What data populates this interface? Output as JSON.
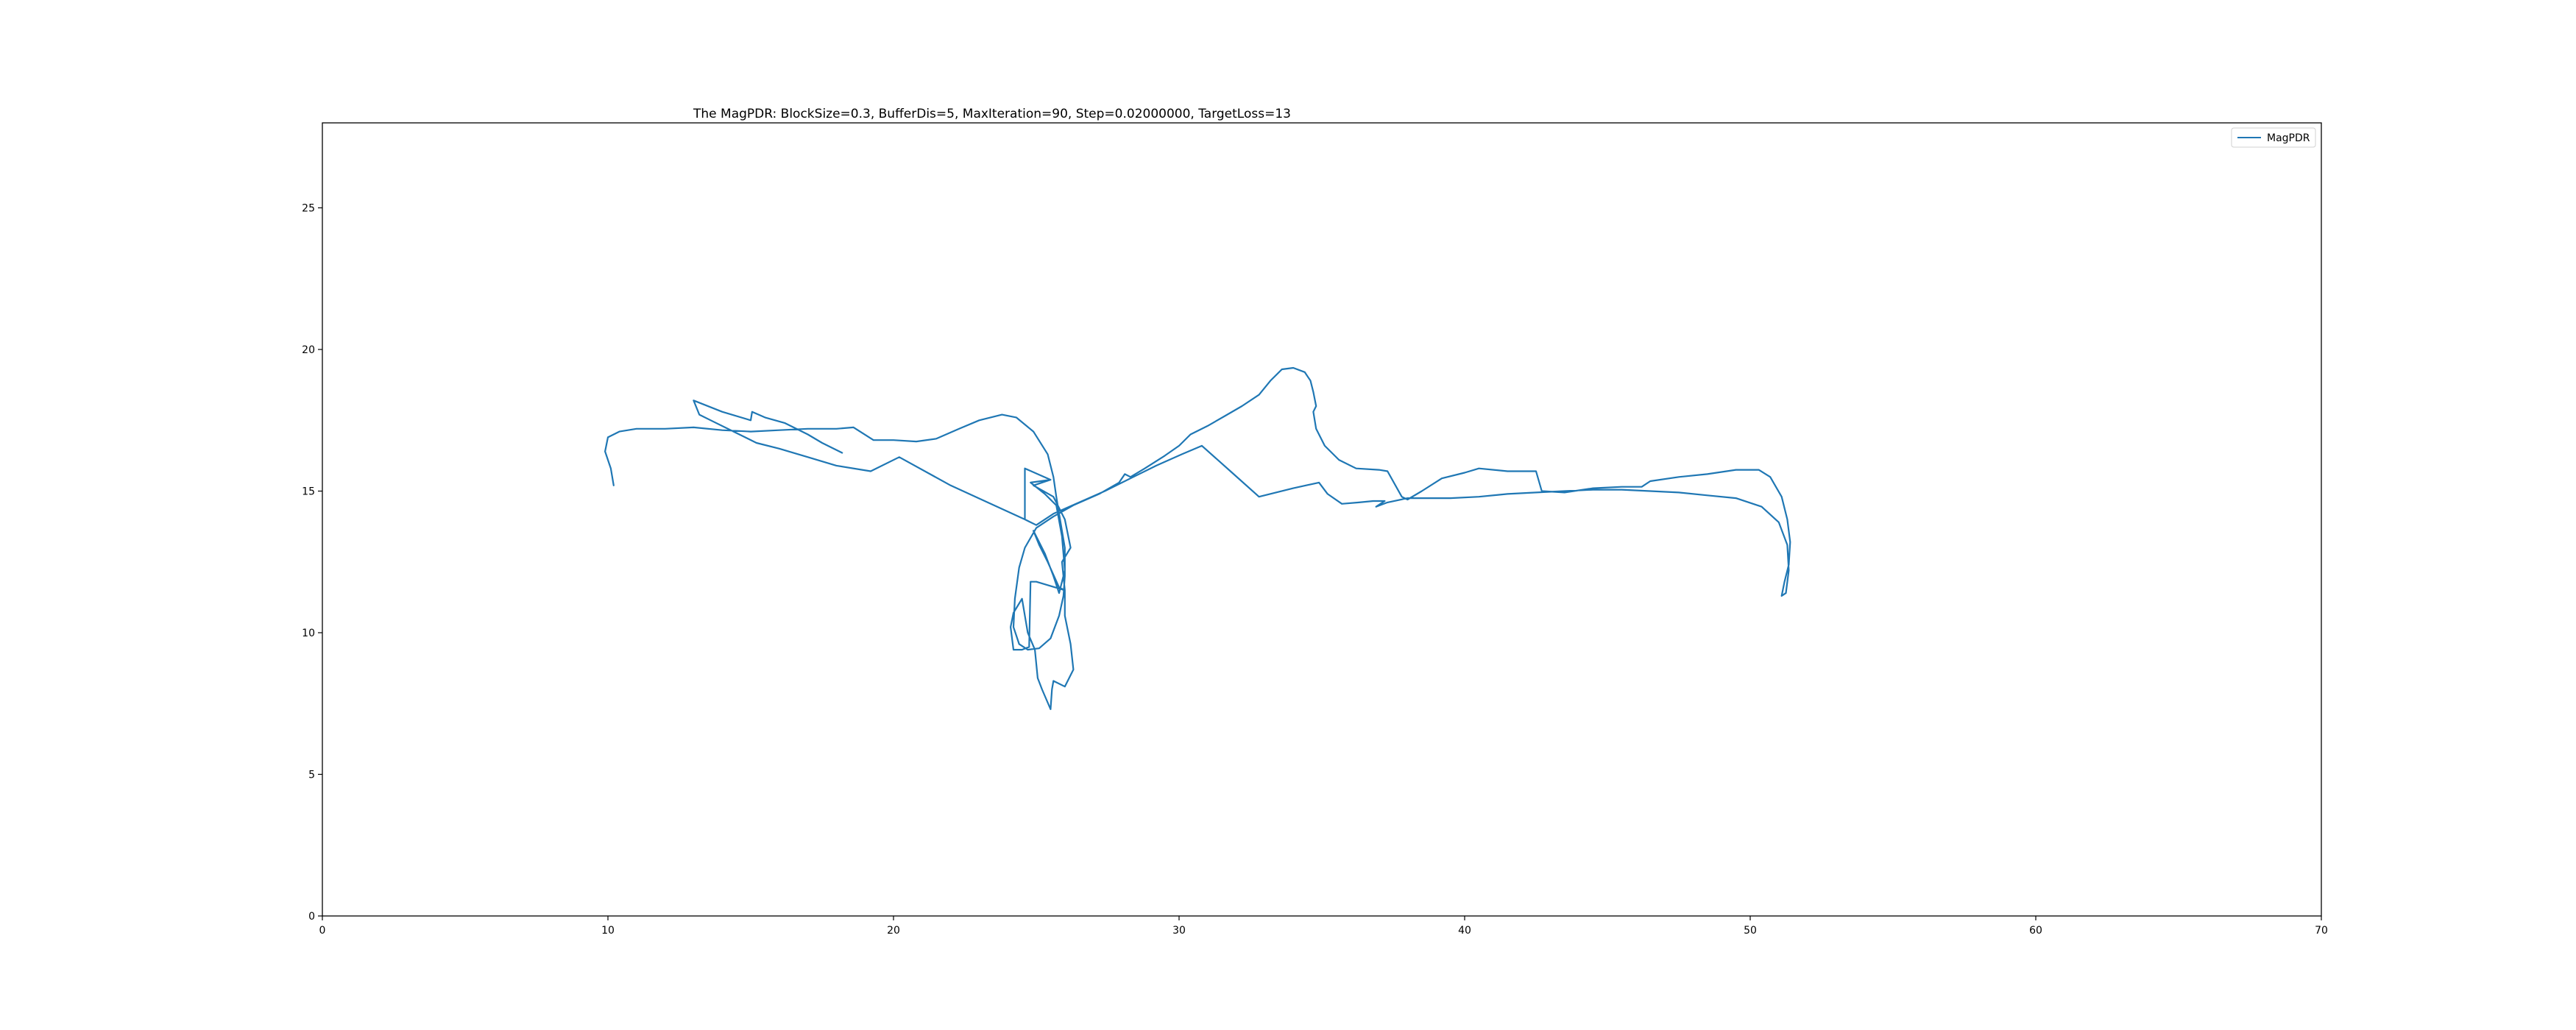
{
  "chart_data": {
    "type": "line",
    "title": "The MagPDR: BlockSize=0.3, BufferDis=5, MaxIteration=90, Step=0.02000000, TargetLoss=13",
    "xlabel": "",
    "ylabel": "",
    "xlim": [
      0,
      70
    ],
    "ylim": [
      0,
      28
    ],
    "x_ticks": [
      0,
      10,
      20,
      30,
      40,
      50,
      60,
      70
    ],
    "y_ticks": [
      0,
      5,
      10,
      15,
      20,
      25
    ],
    "grid": false,
    "legend": {
      "position": "top-right",
      "entries": [
        "MagPDR"
      ]
    },
    "series": [
      {
        "name": "MagPDR",
        "color": "#1f77b4",
        "points": [
          [
            10.2,
            15.2
          ],
          [
            10.1,
            15.8
          ],
          [
            9.9,
            16.4
          ],
          [
            10.0,
            16.9
          ],
          [
            10.4,
            17.1
          ],
          [
            11.0,
            17.2
          ],
          [
            12.0,
            17.2
          ],
          [
            13.0,
            17.25
          ],
          [
            14.0,
            17.15
          ],
          [
            15.0,
            17.1
          ],
          [
            16.0,
            17.15
          ],
          [
            17.0,
            17.2
          ],
          [
            18.0,
            17.2
          ],
          [
            18.6,
            17.25
          ],
          [
            19.3,
            16.8
          ],
          [
            20.0,
            16.8
          ],
          [
            20.8,
            16.75
          ],
          [
            21.5,
            16.85
          ],
          [
            22.3,
            17.2
          ],
          [
            23.0,
            17.5
          ],
          [
            23.8,
            17.7
          ],
          [
            24.3,
            17.6
          ],
          [
            24.9,
            17.1
          ],
          [
            25.4,
            16.3
          ],
          [
            25.6,
            15.5
          ],
          [
            25.7,
            14.8
          ],
          [
            25.8,
            14.2
          ],
          [
            26.0,
            13.0
          ],
          [
            26.0,
            12.0
          ],
          [
            25.95,
            11.3
          ],
          [
            25.8,
            10.6
          ],
          [
            25.5,
            9.8
          ],
          [
            25.1,
            9.45
          ],
          [
            24.7,
            9.4
          ],
          [
            24.4,
            9.6
          ],
          [
            24.2,
            10.2
          ],
          [
            24.25,
            11.2
          ],
          [
            24.4,
            12.3
          ],
          [
            24.6,
            13.0
          ],
          [
            25.0,
            13.7
          ],
          [
            25.6,
            14.1
          ],
          [
            26.3,
            14.5
          ],
          [
            27.2,
            14.9
          ],
          [
            27.9,
            15.3
          ],
          [
            28.1,
            15.6
          ],
          [
            28.3,
            15.5
          ],
          [
            28.8,
            15.8
          ],
          [
            29.5,
            16.25
          ],
          [
            30.0,
            16.6
          ],
          [
            30.4,
            17.0
          ],
          [
            31.0,
            17.3
          ],
          [
            31.6,
            17.65
          ],
          [
            32.2,
            18.0
          ],
          [
            32.8,
            18.4
          ],
          [
            33.2,
            18.9
          ],
          [
            33.6,
            19.3
          ],
          [
            34.0,
            19.35
          ],
          [
            34.4,
            19.2
          ],
          [
            34.6,
            18.9
          ],
          [
            34.7,
            18.5
          ],
          [
            34.8,
            18.0
          ],
          [
            34.7,
            17.8
          ],
          [
            34.8,
            17.2
          ],
          [
            35.1,
            16.6
          ],
          [
            35.6,
            16.1
          ],
          [
            36.2,
            15.8
          ],
          [
            37.0,
            15.75
          ],
          [
            37.3,
            15.7
          ],
          [
            37.8,
            14.8
          ],
          [
            38.0,
            14.7
          ],
          [
            38.5,
            15.0
          ],
          [
            39.2,
            15.45
          ],
          [
            40.0,
            15.65
          ],
          [
            40.5,
            15.8
          ],
          [
            41.5,
            15.7
          ],
          [
            42.5,
            15.7
          ],
          [
            42.7,
            15.0
          ],
          [
            43.5,
            14.95
          ],
          [
            44.5,
            15.1
          ],
          [
            45.5,
            15.15
          ],
          [
            46.2,
            15.15
          ],
          [
            46.5,
            15.35
          ],
          [
            47.5,
            15.5
          ],
          [
            48.5,
            15.6
          ],
          [
            49.5,
            15.75
          ],
          [
            50.3,
            15.75
          ],
          [
            50.7,
            15.5
          ],
          [
            51.1,
            14.8
          ],
          [
            51.3,
            14.0
          ],
          [
            51.4,
            13.2
          ],
          [
            51.35,
            12.4
          ],
          [
            51.2,
            11.8
          ],
          [
            51.1,
            11.3
          ],
          [
            51.25,
            11.4
          ],
          [
            51.35,
            12.2
          ],
          [
            51.3,
            13.1
          ],
          [
            51.0,
            13.9
          ],
          [
            50.4,
            14.45
          ],
          [
            49.5,
            14.75
          ],
          [
            48.5,
            14.85
          ],
          [
            47.5,
            14.95
          ],
          [
            46.5,
            15.0
          ],
          [
            45.5,
            15.05
          ],
          [
            44.5,
            15.05
          ],
          [
            43.5,
            15.0
          ],
          [
            42.5,
            14.95
          ],
          [
            41.5,
            14.9
          ],
          [
            40.5,
            14.8
          ],
          [
            39.5,
            14.75
          ],
          [
            38.7,
            14.75
          ],
          [
            38.0,
            14.75
          ],
          [
            37.3,
            14.6
          ],
          [
            36.9,
            14.45
          ],
          [
            37.2,
            14.65
          ],
          [
            36.8,
            14.65
          ],
          [
            36.3,
            14.6
          ],
          [
            35.7,
            14.55
          ],
          [
            35.2,
            14.9
          ],
          [
            34.9,
            15.3
          ],
          [
            34.0,
            15.1
          ],
          [
            32.8,
            14.8
          ],
          [
            31.8,
            15.7
          ],
          [
            30.8,
            16.6
          ],
          [
            30.1,
            16.3
          ],
          [
            29.2,
            15.9
          ],
          [
            28.3,
            15.45
          ],
          [
            27.4,
            15.0
          ],
          [
            26.5,
            14.6
          ],
          [
            25.6,
            14.2
          ],
          [
            25.0,
            13.8
          ],
          [
            24.6,
            14.0
          ],
          [
            24.6,
            15.8
          ],
          [
            25.5,
            15.4
          ],
          [
            24.8,
            15.3
          ],
          [
            25.3,
            14.9
          ],
          [
            25.7,
            14.5
          ],
          [
            25.9,
            13.4
          ],
          [
            26.0,
            12.2
          ],
          [
            25.8,
            11.4
          ],
          [
            25.6,
            12.0
          ],
          [
            25.3,
            12.8
          ],
          [
            24.9,
            13.6
          ],
          [
            25.1,
            13.1
          ],
          [
            25.4,
            12.5
          ],
          [
            25.8,
            11.6
          ],
          [
            26.0,
            11.5
          ],
          [
            25.0,
            11.8
          ],
          [
            24.8,
            11.8
          ],
          [
            24.75,
            9.5
          ],
          [
            24.5,
            9.4
          ],
          [
            24.2,
            9.4
          ],
          [
            24.1,
            10.2
          ],
          [
            24.2,
            10.7
          ],
          [
            24.5,
            11.2
          ],
          [
            24.7,
            10.0
          ],
          [
            24.95,
            9.4
          ],
          [
            25.05,
            8.4
          ],
          [
            25.2,
            8.0
          ],
          [
            25.5,
            7.3
          ],
          [
            25.55,
            8.0
          ],
          [
            25.6,
            8.3
          ],
          [
            26.0,
            8.1
          ],
          [
            26.3,
            8.7
          ],
          [
            26.2,
            9.6
          ],
          [
            26.0,
            10.6
          ],
          [
            26.0,
            11.5
          ],
          [
            25.9,
            12.5
          ],
          [
            26.2,
            13.0
          ],
          [
            26.0,
            14.0
          ],
          [
            25.6,
            14.8
          ],
          [
            24.9,
            15.2
          ],
          [
            25.5,
            15.4
          ],
          [
            24.6,
            15.8
          ],
          [
            24.6,
            14.0
          ],
          [
            23.3,
            14.6
          ],
          [
            22.0,
            15.2
          ],
          [
            20.2,
            16.2
          ],
          [
            19.2,
            15.7
          ],
          [
            18.0,
            15.9
          ],
          [
            17.0,
            16.2
          ],
          [
            16.0,
            16.5
          ],
          [
            15.2,
            16.7
          ],
          [
            14.4,
            17.1
          ],
          [
            13.6,
            17.5
          ],
          [
            13.2,
            17.7
          ],
          [
            13.0,
            18.2
          ],
          [
            14.0,
            17.8
          ],
          [
            15.0,
            17.5
          ],
          [
            15.05,
            17.8
          ],
          [
            15.5,
            17.6
          ],
          [
            16.2,
            17.4
          ],
          [
            17.0,
            17.0
          ],
          [
            17.5,
            16.7
          ],
          [
            18.2,
            16.35
          ]
        ]
      }
    ]
  }
}
